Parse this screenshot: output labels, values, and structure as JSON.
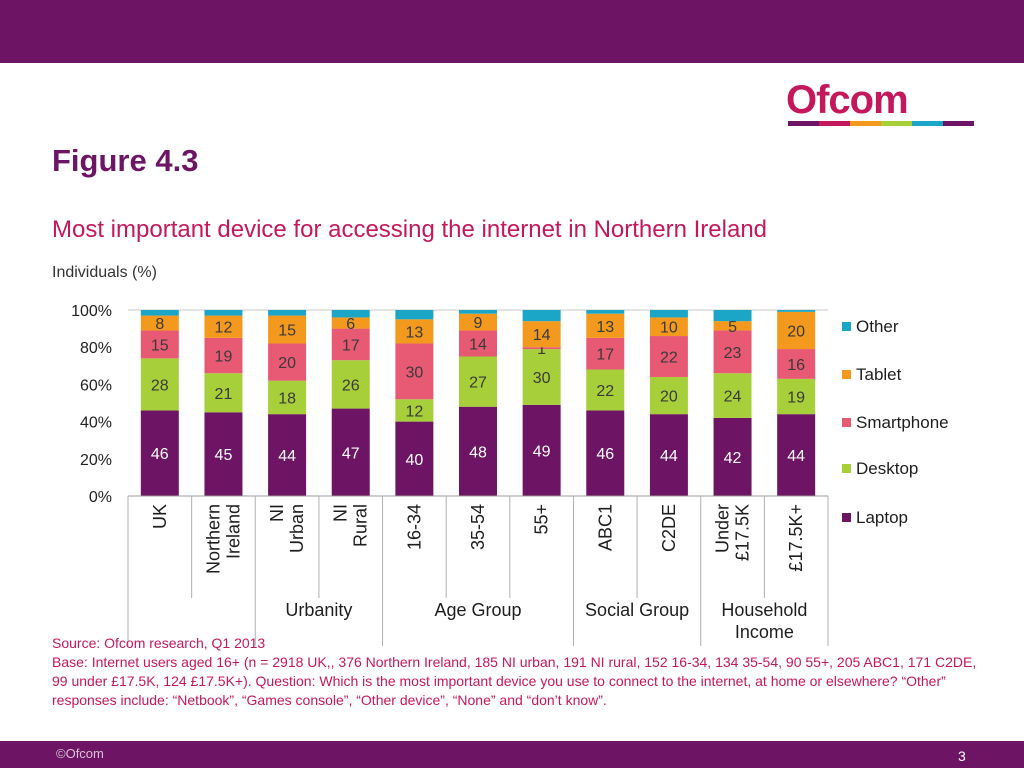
{
  "header": {
    "logo_text": "Ofcom",
    "figure_label": "Figure 4.3",
    "subtitle": "Most important device for accessing the internet in Northern Ireland",
    "unit": "Individuals (%)"
  },
  "colors": {
    "brand": "#6d1464",
    "accent": "#c3185c",
    "laptop": "#6d1464",
    "desktop": "#a6cf3a",
    "smartphone": "#e85a74",
    "tablet": "#f39a1e",
    "other": "#1ba5c6",
    "logo_stripe": [
      "#6d1464",
      "#c3185c",
      "#f39a1e",
      "#a6cf3a",
      "#1ba5c6",
      "#6d1464"
    ]
  },
  "chart_data": {
    "type": "bar",
    "stacked": true,
    "ylim": [
      0,
      100
    ],
    "yticks": [
      "0%",
      "20%",
      "40%",
      "60%",
      "80%",
      "100%"
    ],
    "categories": [
      "UK",
      "Northern Ireland",
      "NI Urban",
      "NI Rural",
      "16-34",
      "35-54",
      "55+",
      "ABC1",
      "C2DE",
      "Under £17.5K",
      "£17.5K+"
    ],
    "category_lines": [
      [
        "UK"
      ],
      [
        "Northern",
        "Ireland"
      ],
      [
        "NI",
        "Urban"
      ],
      [
        "NI",
        "Rural"
      ],
      [
        "16-34"
      ],
      [
        "35-54"
      ],
      [
        "55+"
      ],
      [
        "ABC1"
      ],
      [
        "C2DE"
      ],
      [
        "Under",
        "£17.5K"
      ],
      [
        "£17.5K+"
      ]
    ],
    "series": [
      {
        "name": "Laptop",
        "values": [
          46,
          45,
          44,
          47,
          40,
          48,
          49,
          46,
          44,
          42,
          44
        ]
      },
      {
        "name": "Desktop",
        "values": [
          28,
          21,
          18,
          26,
          12,
          27,
          30,
          22,
          20,
          24,
          19
        ]
      },
      {
        "name": "Smartphone",
        "values": [
          15,
          19,
          20,
          17,
          30,
          14,
          1,
          17,
          22,
          23,
          16
        ]
      },
      {
        "name": "Tablet",
        "values": [
          8,
          12,
          15,
          6,
          13,
          9,
          14,
          13,
          10,
          5,
          20
        ]
      },
      {
        "name": "Other",
        "values": [
          3,
          3,
          3,
          4,
          5,
          2,
          6,
          2,
          4,
          6,
          1
        ]
      }
    ],
    "legend_order": [
      "Other",
      "Tablet",
      "Smartphone",
      "Desktop",
      "Laptop"
    ],
    "groups": [
      {
        "label": "Urbanity",
        "from": 2,
        "to": 3
      },
      {
        "label": "Age Group",
        "from": 4,
        "to": 6
      },
      {
        "label": "Social Group",
        "from": 7,
        "to": 8
      },
      {
        "label": "Household Income",
        "lines": [
          "Household",
          "Income"
        ],
        "from": 9,
        "to": 10
      }
    ]
  },
  "footnotes": {
    "source": "Source: Ofcom research, Q1 2013",
    "base": "Base: Internet users aged 16+ (n = 2918 UK,, 376 Northern Ireland, 185 NI urban, 191 NI rural, 152 16-34, 134 35-54, 90 55+, 205 ABC1, 171 C2DE, 99 under £17.5K, 124 £17.5K+). Question: Which is the most important device you use to connect to the internet, at home or elsewhere? “Other” responses include: “Netbook”, “Games console”, “Other device”, “None” and “don’t know”."
  },
  "footer": {
    "copyright": "©Ofcom",
    "page_number": "3"
  }
}
